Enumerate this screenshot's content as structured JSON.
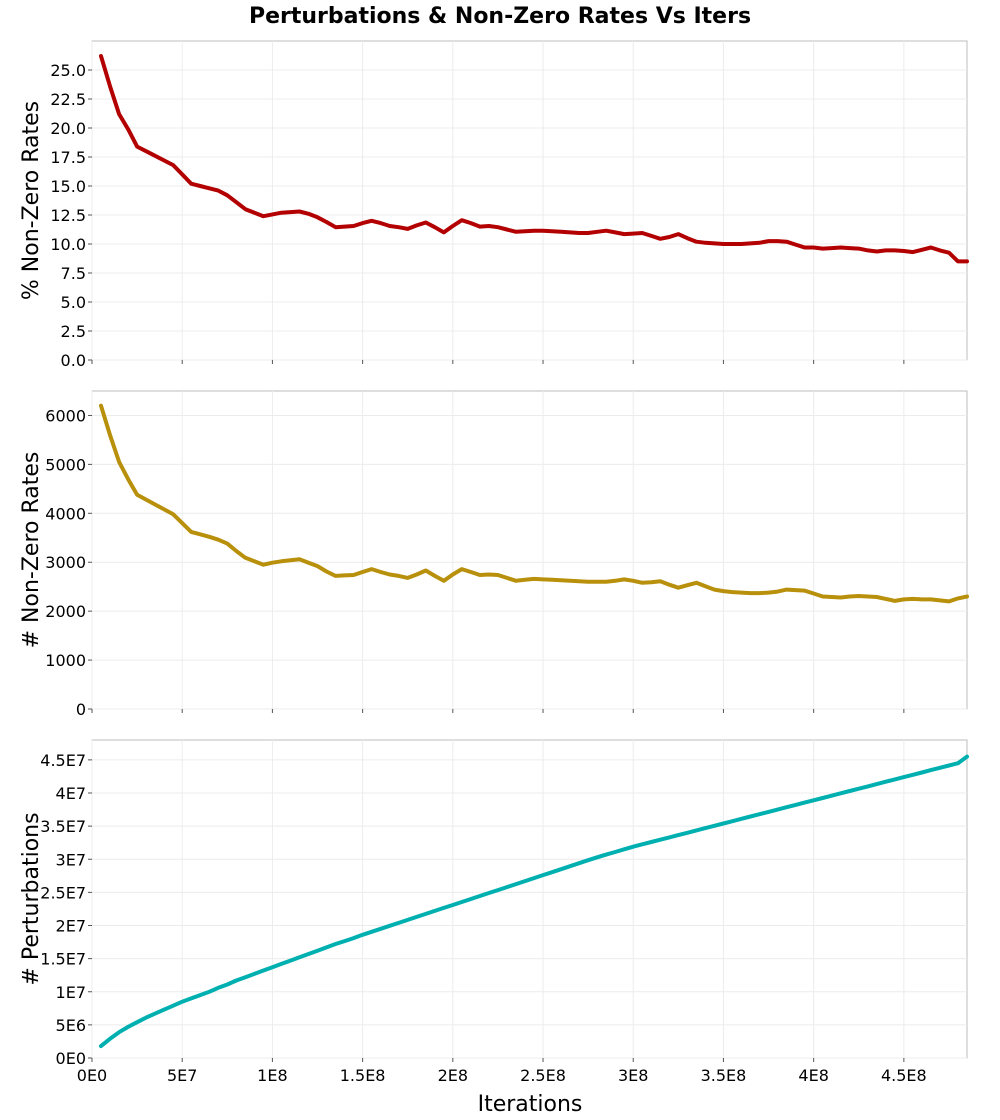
{
  "chart_data": {
    "title": "Perturbations & Non-Zero Rates Vs Iters",
    "xlabel": "Iterations",
    "x_ticks": [
      0,
      50000000,
      100000000,
      150000000,
      200000000,
      250000000,
      300000000,
      350000000,
      400000000,
      450000000
    ],
    "x_tick_labels": [
      "0E0",
      "5E7",
      "1E8",
      "1.5E8",
      "2E8",
      "2.5E8",
      "3E8",
      "3.5E8",
      "4E8",
      "4.5E8"
    ],
    "xlim": [
      0,
      485000000
    ],
    "x": [
      5000000,
      10000000,
      15000000,
      20000000,
      25000000,
      30000000,
      35000000,
      40000000,
      45000000,
      50000000,
      55000000,
      60000000,
      65000000,
      70000000,
      75000000,
      80000000,
      85000000,
      90000000,
      95000000,
      100000000,
      105000000,
      110000000,
      115000000,
      120000000,
      125000000,
      130000000,
      135000000,
      140000000,
      145000000,
      150000000,
      155000000,
      160000000,
      165000000,
      170000000,
      175000000,
      180000000,
      185000000,
      190000000,
      195000000,
      200000000,
      205000000,
      210000000,
      215000000,
      220000000,
      225000000,
      230000000,
      235000000,
      240000000,
      245000000,
      250000000,
      255000000,
      260000000,
      265000000,
      270000000,
      275000000,
      280000000,
      285000000,
      290000000,
      295000000,
      300000000,
      305000000,
      310000000,
      315000000,
      320000000,
      325000000,
      330000000,
      335000000,
      340000000,
      345000000,
      350000000,
      355000000,
      360000000,
      365000000,
      370000000,
      375000000,
      380000000,
      385000000,
      390000000,
      395000000,
      400000000,
      405000000,
      410000000,
      415000000,
      420000000,
      425000000,
      430000000,
      435000000,
      440000000,
      445000000,
      450000000,
      455000000,
      460000000,
      465000000,
      470000000,
      475000000,
      480000000,
      485000000
    ],
    "panels": [
      {
        "type": "line",
        "ylabel": "% Non-Zero Rates",
        "ylim": [
          0,
          27.5
        ],
        "y_ticks": [
          0,
          2.5,
          5,
          7.5,
          10,
          12.5,
          15,
          17.5,
          20,
          22.5,
          25
        ],
        "y_tick_labels": [
          "0.0",
          "2.5",
          "5.0",
          "7.5",
          "10.0",
          "12.5",
          "15.0",
          "17.5",
          "20.0",
          "22.5",
          "25.0"
        ],
        "color": "#b30000",
        "grid": true,
        "values": [
          26.2,
          23.6,
          21.2,
          19.9,
          18.4,
          18.0,
          17.6,
          17.2,
          16.8,
          16.0,
          15.2,
          15.0,
          14.8,
          14.6,
          14.2,
          13.6,
          13.0,
          12.7,
          12.4,
          12.55,
          12.7,
          12.75,
          12.8,
          12.6,
          12.3,
          11.9,
          11.45,
          11.5,
          11.55,
          11.8,
          12.0,
          11.8,
          11.55,
          11.45,
          11.3,
          11.6,
          11.85,
          11.45,
          11.0,
          11.55,
          12.05,
          11.8,
          11.5,
          11.55,
          11.45,
          11.25,
          11.05,
          11.1,
          11.15,
          11.15,
          11.1,
          11.05,
          11.0,
          10.95,
          10.95,
          11.05,
          11.15,
          11.0,
          10.85,
          10.9,
          10.95,
          10.7,
          10.45,
          10.6,
          10.85,
          10.5,
          10.2,
          10.1,
          10.05,
          10.0,
          10.0,
          10.0,
          10.05,
          10.1,
          10.25,
          10.25,
          10.2,
          9.95,
          9.7,
          9.7,
          9.6,
          9.65,
          9.7,
          9.65,
          9.6,
          9.45,
          9.35,
          9.45,
          9.45,
          9.4,
          9.3,
          9.5,
          9.7,
          9.45,
          9.25,
          8.5,
          8.5
        ],
        "values_tail_note": ""
      },
      {
        "type": "line",
        "ylabel": "# Non-Zero Rates",
        "ylim": [
          0,
          6500
        ],
        "y_ticks": [
          0,
          1000,
          2000,
          3000,
          4000,
          5000,
          6000
        ],
        "y_tick_labels": [
          "0",
          "1000",
          "2000",
          "3000",
          "4000",
          "5000",
          "6000"
        ],
        "color": "#b8900c",
        "grid": true,
        "values": [
          6200,
          5600,
          5050,
          4700,
          4380,
          4280,
          4180,
          4080,
          3980,
          3800,
          3620,
          3570,
          3520,
          3460,
          3380,
          3230,
          3090,
          3020,
          2950,
          2990,
          3020,
          3040,
          3060,
          2990,
          2920,
          2810,
          2720,
          2730,
          2740,
          2800,
          2860,
          2800,
          2750,
          2720,
          2680,
          2750,
          2830,
          2720,
          2620,
          2750,
          2860,
          2800,
          2740,
          2750,
          2740,
          2680,
          2620,
          2640,
          2660,
          2650,
          2640,
          2630,
          2620,
          2610,
          2600,
          2600,
          2600,
          2620,
          2650,
          2620,
          2580,
          2590,
          2610,
          2540,
          2480,
          2530,
          2580,
          2510,
          2440,
          2410,
          2390,
          2380,
          2370,
          2370,
          2380,
          2400,
          2440,
          2430,
          2420,
          2360,
          2300,
          2290,
          2280,
          2300,
          2310,
          2300,
          2290,
          2250,
          2210,
          2240,
          2250,
          2240,
          2240,
          2220,
          2200,
          2260,
          2300
        ],
        "values_tail_note": ""
      },
      {
        "type": "line",
        "ylabel": "# Perturbations",
        "ylim": [
          0,
          48000000
        ],
        "y_ticks": [
          0,
          5000000,
          10000000,
          15000000,
          20000000,
          25000000,
          30000000,
          35000000,
          40000000,
          45000000
        ],
        "y_tick_labels": [
          "0E0",
          "5E6",
          "1E7",
          "1.5E7",
          "2E7",
          "2.5E7",
          "3E7",
          "3.5E7",
          "4E7",
          "4.5E7"
        ],
        "color": "#00b0b0",
        "grid": true,
        "values": [
          1800000,
          2900000,
          3900000,
          4700000,
          5400000,
          6100000,
          6700000,
          7300000,
          7900000,
          8500000,
          9000000,
          9500000,
          10000000,
          10600000,
          11100000,
          11700000,
          12200000,
          12700000,
          13200000,
          13700000,
          14200000,
          14700000,
          15200000,
          15700000,
          16200000,
          16700000,
          17200000,
          17650000,
          18100000,
          18600000,
          19050000,
          19500000,
          19950000,
          20400000,
          20850000,
          21300000,
          21750000,
          22200000,
          22650000,
          23100000,
          23550000,
          24000000,
          24450000,
          24900000,
          25350000,
          25800000,
          26250000,
          26700000,
          27150000,
          27600000,
          28050000,
          28500000,
          28950000,
          29400000,
          29850000,
          30300000,
          30700000,
          31100000,
          31500000,
          31900000,
          32250000,
          32600000,
          32950000,
          33300000,
          33650000,
          34000000,
          34350000,
          34700000,
          35050000,
          35400000,
          35750000,
          36100000,
          36450000,
          36800000,
          37150000,
          37500000,
          37850000,
          38200000,
          38550000,
          38900000,
          39250000,
          39600000,
          39950000,
          40300000,
          40650000,
          41000000,
          41350000,
          41700000,
          42050000,
          42400000,
          42750000,
          43100000,
          43450000,
          43800000,
          44150000,
          44500000,
          45500000
        ],
        "values_tail_note": ""
      }
    ]
  }
}
